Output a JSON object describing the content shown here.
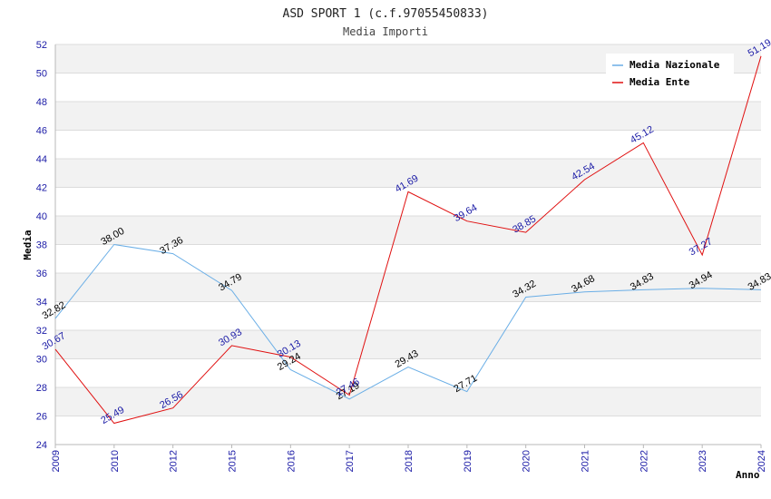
{
  "chart_data": {
    "type": "line",
    "title": "ASD SPORT 1 (c.f.97055450833)",
    "subtitle": "Media Importi",
    "xlabel": "Anno",
    "ylabel": "Media",
    "ylim": [
      24,
      52
    ],
    "ytick_step": 2,
    "grid": true,
    "legend_position": "top-right",
    "categories": [
      "2009",
      "2010",
      "2012",
      "2015",
      "2016",
      "2017",
      "2018",
      "2019",
      "2020",
      "2021",
      "2022",
      "2023",
      "2024"
    ],
    "series": [
      {
        "name": "Media Nazionale",
        "color": "#6aaee6",
        "label_color": "#000000",
        "values": [
          32.82,
          38.0,
          37.36,
          34.79,
          29.24,
          27.19,
          29.43,
          27.71,
          34.32,
          34.68,
          34.83,
          34.94,
          34.83
        ],
        "labels": [
          "32.82",
          "38.00",
          "37.36",
          "34.79",
          "29.24",
          "27.19",
          "29.43",
          "27.71",
          "34.32",
          "34.68",
          "34.83",
          "34.94",
          "34.83"
        ]
      },
      {
        "name": "Media Ente",
        "color": "#e01010",
        "label_color": "#1a1aa6",
        "values": [
          30.67,
          25.49,
          26.56,
          30.93,
          30.13,
          27.46,
          41.69,
          39.64,
          38.85,
          42.54,
          45.12,
          37.27,
          51.19
        ],
        "labels": [
          "30.67",
          "25.49",
          "26.56",
          "30.93",
          "30.13",
          "27.46",
          "41.69",
          "39.64",
          "38.85",
          "42.54",
          "45.12",
          "37.27",
          "51.19"
        ]
      }
    ]
  }
}
